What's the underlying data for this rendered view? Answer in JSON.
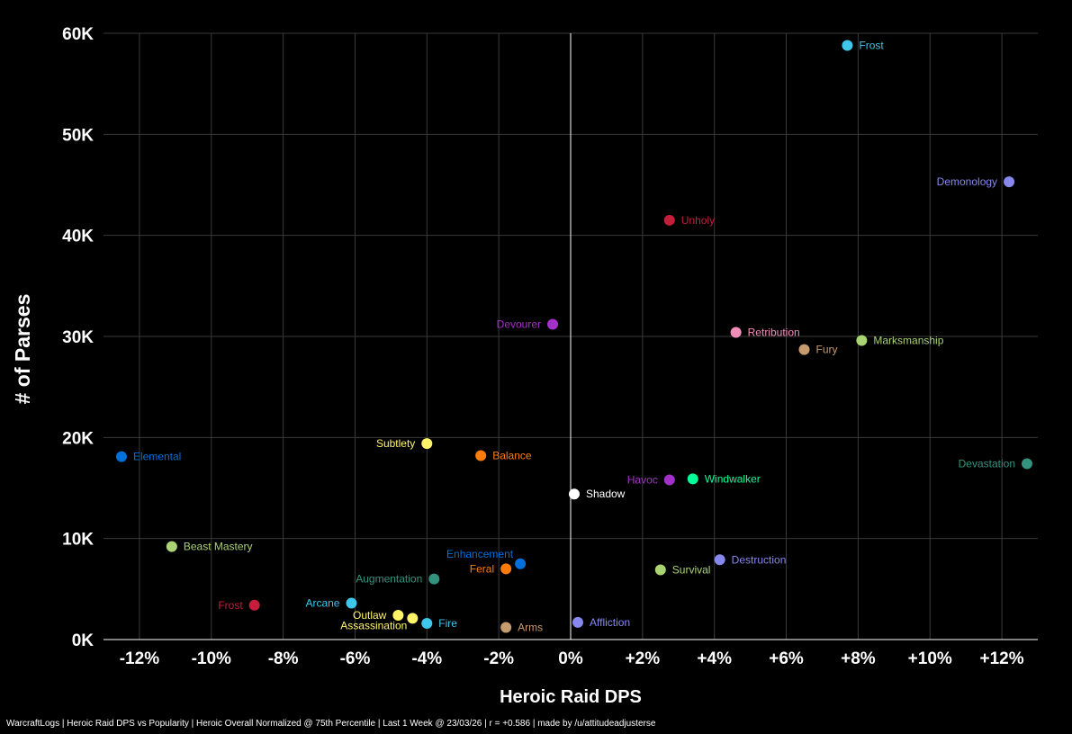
{
  "chart_data": {
    "type": "scatter",
    "title": "",
    "xlabel": "Heroic Raid DPS",
    "ylabel": "# of Parses",
    "xlim": [
      -13,
      13
    ],
    "ylim": [
      0,
      60000
    ],
    "x_ticks": [
      -12,
      -10,
      -8,
      -6,
      -4,
      -2,
      0,
      2,
      4,
      6,
      8,
      10,
      12
    ],
    "x_tick_labels": [
      "-12%",
      "-10%",
      "-8%",
      "-6%",
      "-4%",
      "-2%",
      "0%",
      "+2%",
      "+4%",
      "+6%",
      "+8%",
      "+10%",
      "+12%"
    ],
    "y_ticks": [
      0,
      10000,
      20000,
      30000,
      40000,
      50000,
      60000
    ],
    "y_tick_labels": [
      "0K",
      "10K",
      "20K",
      "30K",
      "40K",
      "50K",
      "60K"
    ],
    "grid": true,
    "points": [
      {
        "name": "Frost",
        "x": 7.7,
        "y": 58800,
        "color": "#3fc7eb",
        "label_side": "right"
      },
      {
        "name": "Demonology",
        "x": 12.2,
        "y": 45300,
        "color": "#8788ee",
        "label_side": "left"
      },
      {
        "name": "Unholy",
        "x": 2.75,
        "y": 41500,
        "color": "#c41e3a",
        "label_side": "right"
      },
      {
        "name": "Devourer",
        "x": -0.5,
        "y": 31200,
        "color": "#a330c9",
        "label_side": "left"
      },
      {
        "name": "Retribution",
        "x": 4.6,
        "y": 30400,
        "color": "#f48cba",
        "label_side": "right"
      },
      {
        "name": "Fury",
        "x": 6.5,
        "y": 28700,
        "color": "#c69b6d",
        "label_side": "right"
      },
      {
        "name": "Marksmanship",
        "x": 8.1,
        "y": 29600,
        "color": "#aad372",
        "label_side": "right"
      },
      {
        "name": "Subtlety",
        "x": -4.0,
        "y": 19400,
        "color": "#fff468",
        "label_side": "left"
      },
      {
        "name": "Balance",
        "x": -2.5,
        "y": 18200,
        "color": "#ff7c0a",
        "label_side": "right"
      },
      {
        "name": "Elemental",
        "x": -12.5,
        "y": 18100,
        "color": "#0070dd",
        "label_side": "right"
      },
      {
        "name": "Devastation",
        "x": 12.7,
        "y": 17400,
        "color": "#33937f",
        "label_side": "left"
      },
      {
        "name": "Havoc",
        "x": 2.75,
        "y": 15800,
        "color": "#a330c9",
        "label_side": "left"
      },
      {
        "name": "Windwalker",
        "x": 3.4,
        "y": 15900,
        "color": "#00ff98",
        "label_side": "right"
      },
      {
        "name": "Shadow",
        "x": 0.1,
        "y": 14400,
        "color": "#ffffff",
        "label_side": "right"
      },
      {
        "name": "Beast Mastery",
        "x": -11.1,
        "y": 9200,
        "color": "#aad372",
        "label_side": "right"
      },
      {
        "name": "Enhancement",
        "x": -1.4,
        "y": 7500,
        "color": "#0070dd",
        "label_side": "left-up"
      },
      {
        "name": "Feral",
        "x": -1.8,
        "y": 7000,
        "color": "#ff7c0a",
        "label_side": "left"
      },
      {
        "name": "Destruction",
        "x": 4.15,
        "y": 7900,
        "color": "#8788ee",
        "label_side": "right"
      },
      {
        "name": "Survival",
        "x": 2.5,
        "y": 6900,
        "color": "#aad372",
        "label_side": "right"
      },
      {
        "name": "Augmentation",
        "x": -3.8,
        "y": 6000,
        "color": "#33937f",
        "label_side": "left"
      },
      {
        "name": "Frost",
        "x": -8.8,
        "y": 3400,
        "color": "#c41e3a",
        "label_side": "left"
      },
      {
        "name": "Arcane",
        "x": -6.1,
        "y": 3600,
        "color": "#3fc7eb",
        "label_side": "left"
      },
      {
        "name": "Outlaw",
        "x": -4.8,
        "y": 2400,
        "color": "#fff468",
        "label_side": "left"
      },
      {
        "name": "Assassination",
        "x": -4.4,
        "y": 2100,
        "color": "#fff468",
        "label_side": "left-down"
      },
      {
        "name": "Fire",
        "x": -4.0,
        "y": 1600,
        "color": "#3fc7eb",
        "label_side": "right"
      },
      {
        "name": "Arms",
        "x": -1.8,
        "y": 1200,
        "color": "#c69b6d",
        "label_side": "right"
      },
      {
        "name": "Affliction",
        "x": 0.2,
        "y": 1700,
        "color": "#8788ee",
        "label_side": "right"
      }
    ]
  },
  "footer": "WarcraftLogs | Heroic Raid DPS vs Popularity | Heroic Overall Normalized @ 75th Percentile | Last 1 Week @ 23/03/26 | r = +0.586 | made by /u/attitudeadjusterse"
}
